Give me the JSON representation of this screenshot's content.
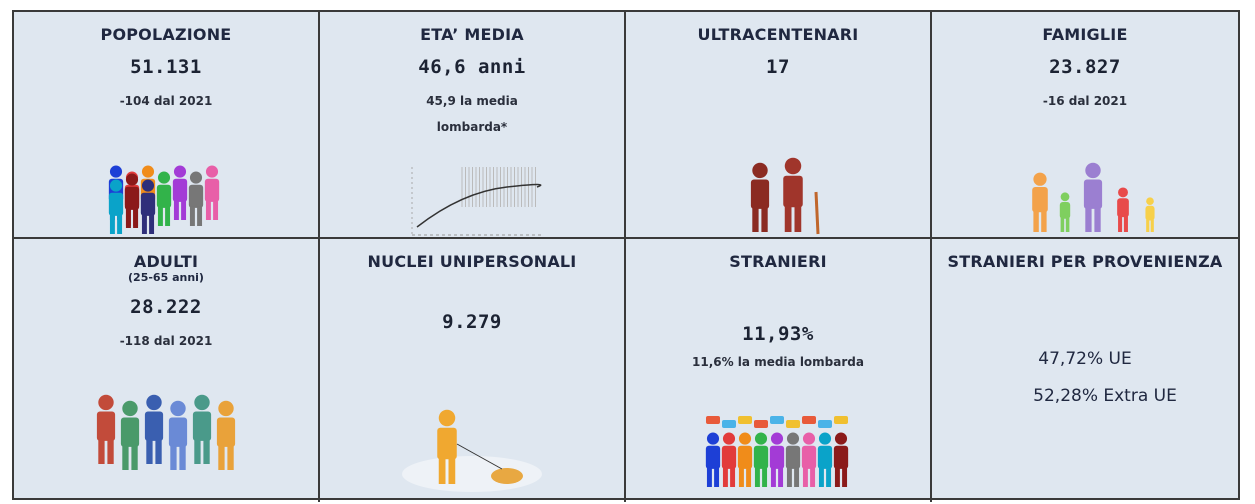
{
  "cells": [
    {
      "title": "POPOLAZIONE",
      "value": "51.131",
      "note": "-104 dal 2021"
    },
    {
      "title": "ETA’ MEDIA",
      "value": "46,6 anni",
      "note": "45,9 la media lombarda*"
    },
    {
      "title": "ULTRACENTENARI",
      "value": "17"
    },
    {
      "title": "FAMIGLIE",
      "value": "23.827",
      "note": "-16 dal 2021"
    },
    {
      "title": "ADULTI",
      "subtitle": "(25-65 anni)",
      "value": "28.222",
      "note": "-118 dal 2021"
    },
    {
      "title": "NUCLEI UNIPERSONALI",
      "value": "9.279"
    },
    {
      "title": "STRANIERI",
      "value": "11,93%",
      "note": "11,6% la media lombarda"
    },
    {
      "title": "STRANIERI PER PROVENIENZA",
      "lines": [
        "47,72% UE",
        "52,28% Extra UE"
      ]
    }
  ]
}
